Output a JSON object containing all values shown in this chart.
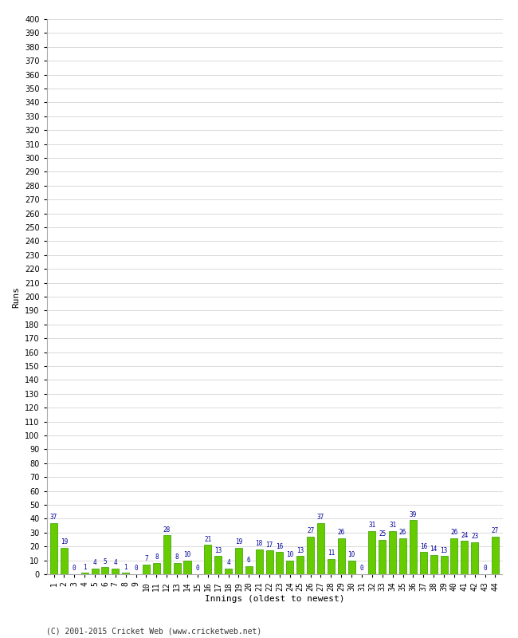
{
  "values": [
    37,
    19,
    0,
    1,
    4,
    5,
    4,
    1,
    0,
    7,
    8,
    28,
    8,
    10,
    0,
    21,
    13,
    4,
    19,
    6,
    18,
    17,
    16,
    10,
    13,
    27,
    37,
    11,
    26,
    10,
    0,
    31,
    25,
    31,
    26,
    39,
    16,
    14,
    13,
    26,
    24,
    23,
    0,
    27
  ],
  "bar_color": "#66cc00",
  "bar_edge_color": "#339900",
  "label_color": "#000099",
  "xlabel": "Innings (oldest to newest)",
  "ylabel": "Runs",
  "ylim": [
    0,
    400
  ],
  "yticks": [
    0,
    10,
    20,
    30,
    40,
    50,
    60,
    70,
    80,
    90,
    100,
    110,
    120,
    130,
    140,
    150,
    160,
    170,
    180,
    190,
    200,
    210,
    220,
    230,
    240,
    250,
    260,
    270,
    280,
    290,
    300,
    310,
    320,
    330,
    340,
    350,
    360,
    370,
    380,
    390,
    400
  ],
  "footer": "(C) 2001-2015 Cricket Web (www.cricketweb.net)",
  "background_color": "#ffffff",
  "grid_color": "#cccccc",
  "ylabel_fontsize": 8,
  "xlabel_fontsize": 8,
  "tick_fontsize": 7,
  "footer_fontsize": 7,
  "bar_label_fontsize": 5.5
}
